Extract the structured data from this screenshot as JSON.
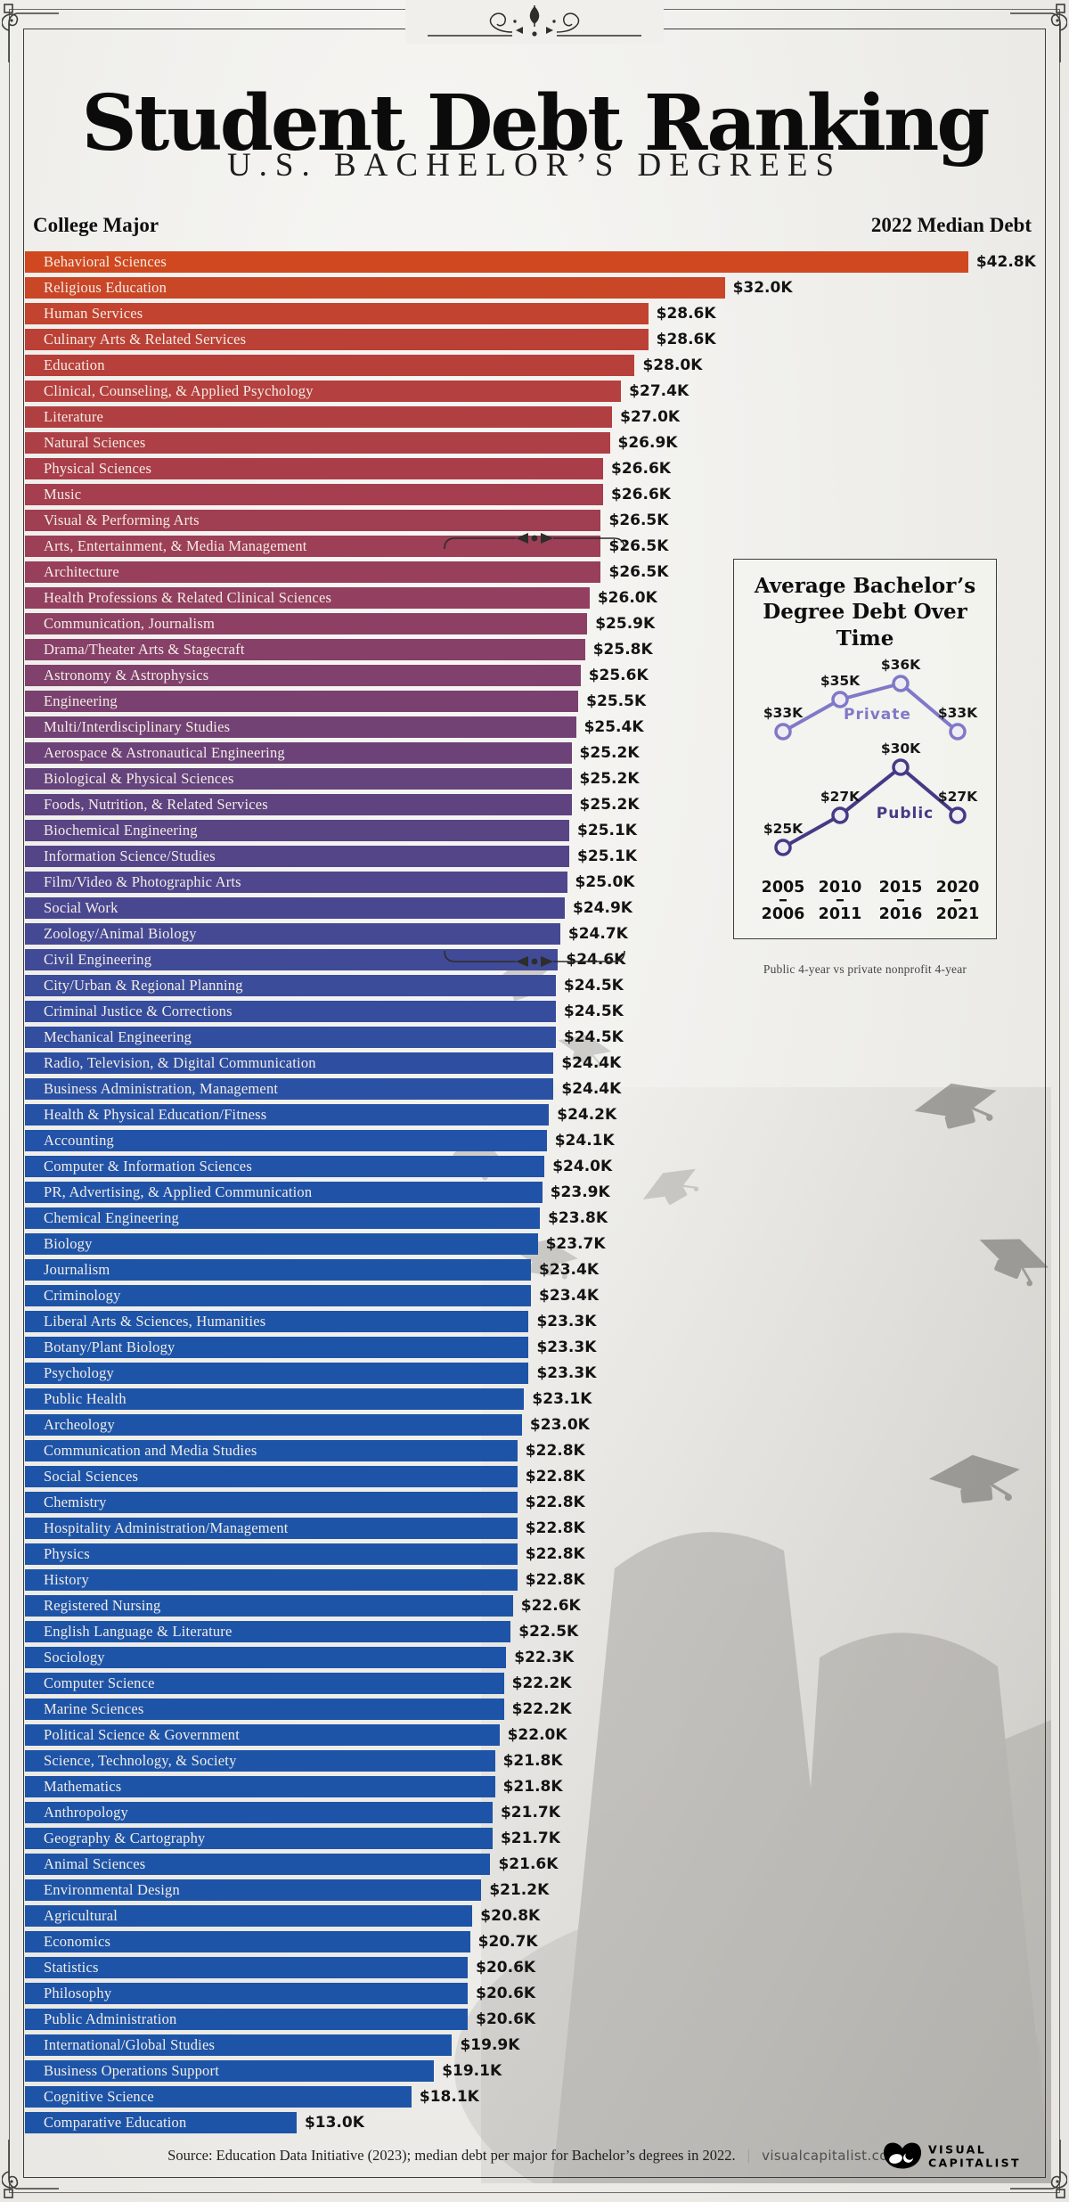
{
  "title": "Student Debt Ranking",
  "subtitle": "U.S. BACHELOR’S DEGREES",
  "columns": {
    "left": "College Major",
    "right": "2022 Median Debt"
  },
  "chart_data": [
    {
      "type": "bar",
      "title": "Student Debt Ranking — U.S. Bachelor's Degrees",
      "xlabel": "2022 Median Debt ($K)",
      "ylabel": "College Major",
      "value_unit": "$K",
      "xlim": [
        0,
        46
      ],
      "color_stops": [
        [
          0,
          "#d0481f"
        ],
        [
          3,
          "#bb4137"
        ],
        [
          8,
          "#a93e4a"
        ],
        [
          13,
          "#933f5f"
        ],
        [
          17,
          "#7a4170"
        ],
        [
          21,
          "#5e4380"
        ],
        [
          25,
          "#4a4791"
        ],
        [
          29,
          "#364d9d"
        ],
        [
          34,
          "#2253a8"
        ],
        [
          39,
          "#1d54a8"
        ],
        [
          72,
          "#1d54a8"
        ]
      ],
      "categories": [
        "Behavioral Sciences",
        "Religious Education",
        "Human Services",
        "Culinary Arts & Related Services",
        "Education",
        "Clinical, Counseling, & Applied Psychology",
        "Literature",
        "Natural Sciences",
        "Physical Sciences",
        "Music",
        "Visual & Performing Arts",
        "Arts, Entertainment, & Media Management",
        "Architecture",
        "Health Professions & Related Clinical Sciences",
        "Communication, Journalism",
        "Drama/Theater Arts & Stagecraft",
        "Astronomy & Astrophysics",
        "Engineering",
        "Multi/Interdisciplinary Studies",
        "Aerospace & Astronautical Engineering",
        "Biological & Physical Sciences",
        "Foods, Nutrition, & Related Services",
        "Biochemical Engineering",
        "Information Science/Studies",
        "Film/Video & Photographic Arts",
        "Social Work",
        "Zoology/Animal Biology",
        "Civil Engineering",
        "City/Urban & Regional Planning",
        "Criminal Justice & Corrections",
        "Mechanical Engineering",
        "Radio, Television, & Digital Communication",
        "Business Administration, Management",
        "Health & Physical Education/Fitness",
        "Accounting",
        "Computer & Information Sciences",
        "PR, Advertising, & Applied Communication",
        "Chemical Engineering",
        "Biology",
        "Journalism",
        "Criminology",
        "Liberal Arts & Sciences, Humanities",
        "Botany/Plant Biology",
        "Psychology",
        "Public Health",
        "Archeology",
        "Communication and Media Studies",
        "Social Sciences",
        "Chemistry",
        "Hospitality Administration/Management",
        "Physics",
        "History",
        "Registered Nursing",
        "English Language & Literature",
        "Sociology",
        "Computer Science",
        "Marine Sciences",
        "Political Science & Government",
        "Science, Technology, & Society",
        "Mathematics",
        "Anthropology",
        "Geography & Cartography",
        "Animal Sciences",
        "Environmental Design",
        "Agricultural",
        "Economics",
        "Statistics",
        "Philosophy",
        "Public Administration",
        "International/Global Studies",
        "Business Operations Support",
        "Cognitive Science",
        "Comparative Education"
      ],
      "values": [
        42.8,
        32.0,
        28.6,
        28.6,
        28.0,
        27.4,
        27.0,
        26.9,
        26.6,
        26.6,
        26.5,
        26.5,
        26.5,
        26.0,
        25.9,
        25.8,
        25.6,
        25.5,
        25.4,
        25.2,
        25.2,
        25.2,
        25.1,
        25.1,
        25.0,
        24.9,
        24.7,
        24.6,
        24.5,
        24.5,
        24.5,
        24.4,
        24.4,
        24.2,
        24.1,
        24.0,
        23.9,
        23.8,
        23.7,
        23.4,
        23.4,
        23.3,
        23.3,
        23.3,
        23.1,
        23.0,
        22.8,
        22.8,
        22.8,
        22.8,
        22.8,
        22.8,
        22.6,
        22.5,
        22.3,
        22.2,
        22.2,
        22.0,
        21.8,
        21.8,
        21.7,
        21.7,
        21.6,
        21.2,
        20.8,
        20.7,
        20.6,
        20.6,
        20.6,
        19.9,
        19.1,
        18.1,
        13.0
      ]
    },
    {
      "type": "line",
      "title": "Average Bachelor’s Degree Debt Over Time",
      "categories": [
        [
          "2005",
          "2006"
        ],
        [
          "2010",
          "2011"
        ],
        [
          "2015",
          "2016"
        ],
        [
          "2020",
          "2021"
        ]
      ],
      "series": [
        {
          "name": "Private",
          "values": [
            33,
            35,
            36,
            33
          ],
          "labels": [
            "$33K",
            "$35K",
            "$36K",
            "$33K"
          ],
          "color": "#8078c8"
        },
        {
          "name": "Public",
          "values": [
            25,
            27,
            30,
            27
          ],
          "labels": [
            "$25K",
            "$27K",
            "$30K",
            "$27K"
          ],
          "color": "#453a86"
        }
      ],
      "caption": "Public 4-year vs private nonprofit 4-year",
      "legend_position": "inline",
      "grid": false
    }
  ],
  "footer": {
    "source": "Source: Education Data Initiative (2023); median debt per major for Bachelor’s degrees in 2022.",
    "divider": "|",
    "site": "visualcapitalist.com",
    "logo_line1": "VISUAL",
    "logo_line2": "CAPITALIST"
  }
}
